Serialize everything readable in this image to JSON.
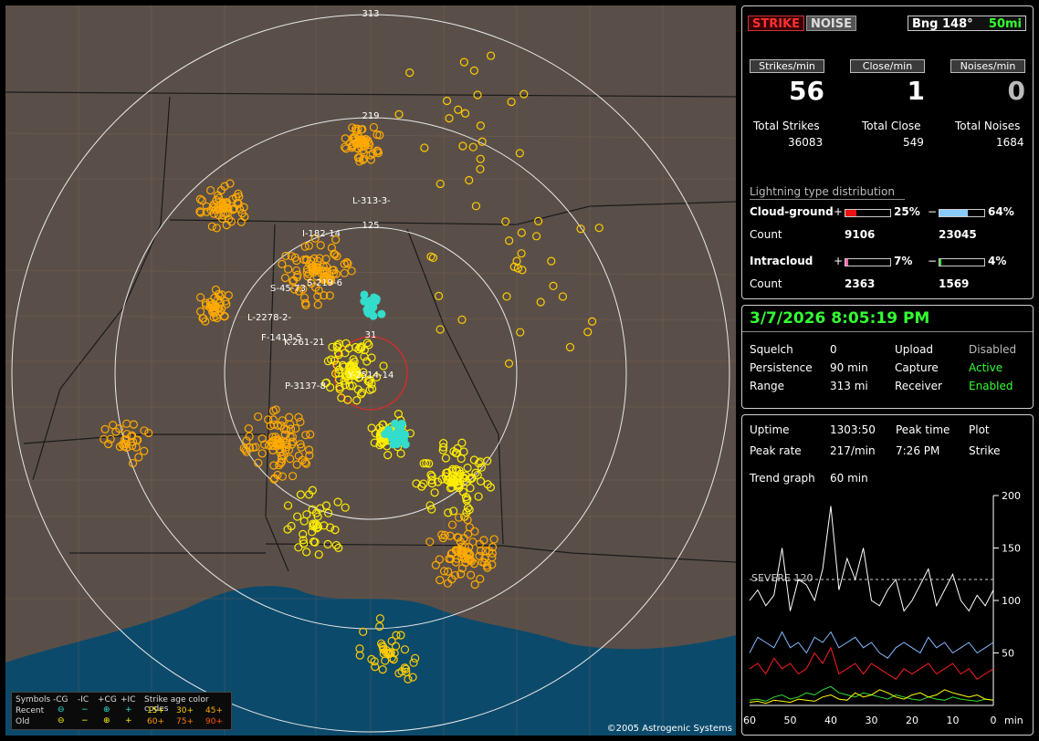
{
  "map": {
    "range_labels": [
      "313",
      "219",
      "125",
      "31"
    ],
    "storm_labels": [
      {
        "text": "L-313-3-",
        "color": "#ffffff"
      },
      {
        "text": "I-182-14",
        "color": "#ffffff"
      },
      {
        "text": "S-219-6",
        "color": "#ffffff"
      },
      {
        "text": "S-45-73",
        "color": "#ffffff"
      },
      {
        "text": "L-2278-2-",
        "color": "#ffffff"
      },
      {
        "text": "F-1413-5",
        "color": "#ffffff"
      },
      {
        "text": "K-261-21",
        "color": "#ffffff"
      },
      {
        "text": "Y-2514-14",
        "color": "#ffffff"
      },
      {
        "text": "P-3137-8",
        "color": "#ffffff"
      }
    ],
    "copyright": "©2005 Astrogenic Systems",
    "legend": {
      "symbols_label": "Symbols",
      "recent_label": "Recent",
      "old_label": "Old",
      "types": [
        "-CG",
        "-IC",
        "+CG",
        "+IC"
      ],
      "age_title": "Strike age color codes",
      "recent_ages": [
        "15+",
        "30+",
        "45+"
      ],
      "old_ages": [
        "60+",
        "75+",
        "90+"
      ],
      "colors": {
        "recent_1": "#ffee00",
        "recent_2": "#ffcc00",
        "recent_3": "#ffaa00",
        "old_1": "#ff9900",
        "old_2": "#ff7f00",
        "old_3": "#ff5500"
      }
    }
  },
  "status": {
    "strike_tab": "STRIKE",
    "noise_tab": "NOISE",
    "bearing": "Bng 148°",
    "distance": "50mi",
    "rate_labels": [
      "Strikes/min",
      "Close/min",
      "Noises/min"
    ],
    "rates": [
      "56",
      "1",
      "0"
    ],
    "total_labels": [
      "Total Strikes",
      "Total Close",
      "Total Noises"
    ],
    "totals": [
      "36083",
      "549",
      "1684"
    ],
    "dist_title": "Lightning type distribution",
    "cg_label": "Cloud-ground",
    "ic_label": "Intracloud",
    "count_label": "Count",
    "plus": "+",
    "minus": "−",
    "cg_plus_pct": "25%",
    "cg_minus_pct": "64%",
    "cg_plus_count": "9106",
    "cg_minus_count": "23045",
    "ic_plus_pct": "7%",
    "ic_minus_pct": "4%",
    "ic_plus_count": "2363",
    "ic_minus_count": "1569",
    "cg_plus_frac": 0.25,
    "cg_minus_frac": 0.64,
    "ic_plus_frac": 0.07,
    "ic_minus_frac": 0.04
  },
  "settings": {
    "datetime": "3/7/2026 8:05:19 PM",
    "squelch_label": "Squelch",
    "squelch": "0",
    "persistence_label": "Persistence",
    "persistence": "90 min",
    "range_label": "Range",
    "range": "313 mi",
    "upload_label": "Upload",
    "upload": "Disabled",
    "capture_label": "Capture",
    "capture": "Active",
    "receiver_label": "Receiver",
    "receiver": "Enabled"
  },
  "trend": {
    "uptime_label": "Uptime",
    "uptime": "1303:50",
    "peak_time_label": "Peak time",
    "peak_time": "7:26 PM",
    "plot_label": "Plot",
    "plot": "Strike",
    "peak_rate_label": "Peak rate",
    "peak_rate": "217/min",
    "trend_label": "Trend graph",
    "trend": "60 min",
    "severe_label": "SEVERE 120"
  },
  "chart_data": {
    "type": "line",
    "x": [
      60,
      58,
      56,
      54,
      52,
      50,
      48,
      46,
      44,
      42,
      40,
      38,
      36,
      34,
      32,
      30,
      28,
      26,
      24,
      22,
      20,
      18,
      16,
      14,
      12,
      10,
      8,
      6,
      4,
      2,
      0
    ],
    "xlabel": "min",
    "x_ticks": [
      "60",
      "50",
      "40",
      "30",
      "20",
      "10",
      "0"
    ],
    "y_ticks": [
      "200",
      "150",
      "100",
      "50"
    ],
    "ylim": [
      0,
      200
    ],
    "xlim": [
      60,
      0
    ],
    "threshold": 120,
    "series": [
      {
        "color": "#ffffff",
        "values": [
          100,
          110,
          95,
          105,
          150,
          90,
          120,
          115,
          100,
          130,
          190,
          110,
          140,
          120,
          150,
          100,
          95,
          110,
          120,
          90,
          100,
          115,
          130,
          95,
          110,
          125,
          100,
          90,
          105,
          95,
          110
        ]
      },
      {
        "color": "#88bbff",
        "values": [
          50,
          65,
          60,
          55,
          70,
          55,
          60,
          50,
          65,
          60,
          70,
          55,
          60,
          65,
          55,
          60,
          50,
          45,
          55,
          60,
          55,
          50,
          65,
          55,
          60,
          50,
          55,
          60,
          50,
          55,
          60
        ]
      },
      {
        "color": "#ff2020",
        "values": [
          35,
          40,
          30,
          45,
          35,
          40,
          30,
          35,
          50,
          40,
          55,
          30,
          35,
          40,
          30,
          40,
          35,
          30,
          25,
          35,
          30,
          35,
          40,
          30,
          35,
          40,
          30,
          35,
          25,
          30,
          35
        ]
      },
      {
        "color": "#ffff00",
        "values": [
          3,
          4,
          2,
          5,
          4,
          3,
          6,
          5,
          4,
          8,
          10,
          6,
          5,
          12,
          8,
          10,
          15,
          12,
          8,
          6,
          10,
          12,
          8,
          10,
          15,
          12,
          10,
          8,
          10,
          6,
          5
        ]
      },
      {
        "color": "#33dd33",
        "values": [
          5,
          6,
          4,
          8,
          10,
          6,
          8,
          12,
          10,
          15,
          18,
          12,
          10,
          8,
          12,
          10,
          8,
          6,
          10,
          8,
          6,
          5,
          8,
          6,
          5,
          8,
          6,
          5,
          4,
          6,
          5
        ]
      }
    ]
  }
}
